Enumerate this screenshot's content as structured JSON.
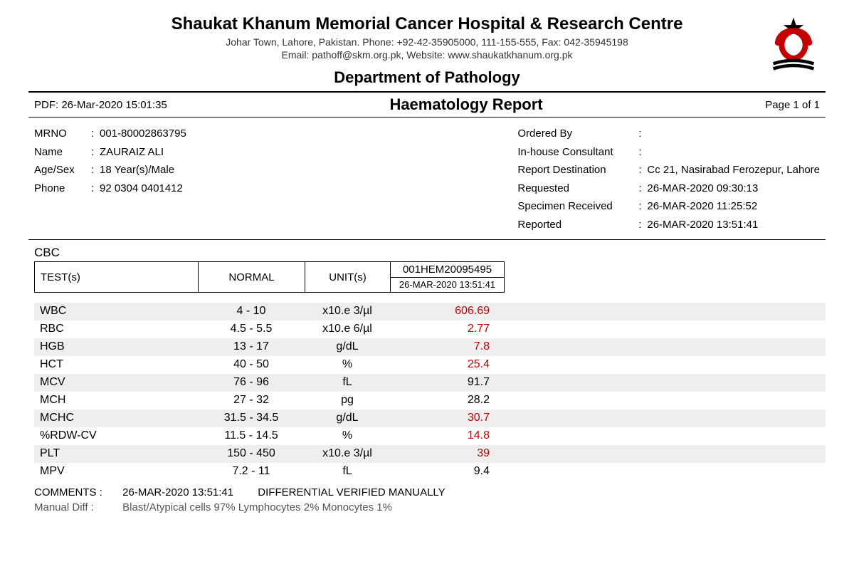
{
  "hospital": {
    "name": "Shaukat Khanum Memorial Cancer Hospital & Research Centre",
    "address_line": "Johar Town, Lahore, Pakistan. Phone: +92-42-35905000, 111-155-555, Fax: 042-35945198",
    "contact_line": "Email: pathoff@skm.org.pk, Website: www.shaukatkhanum.org.pk"
  },
  "dept_title": "Department of Pathology",
  "title_bar": {
    "pdf_ts": "PDF: 26-Mar-2020 15:01:35",
    "report_title": "Haematology Report",
    "page": "Page 1 of 1"
  },
  "patient": {
    "mrno_label": "MRNO",
    "mrno": "001-80002863795",
    "name_label": "Name",
    "name": "ZAURAIZ ALI",
    "agesex_label": "Age/Sex",
    "agesex": "18 Year(s)/Male",
    "phone_label": "Phone",
    "phone": "92 0304 0401412"
  },
  "order": {
    "ordered_by_label": "Ordered By",
    "ordered_by": "",
    "consultant_label": "In-house Consultant",
    "consultant": "",
    "dest_label": "Report Destination",
    "dest": "Cc 21, Nasirabad Ferozepur, Lahore",
    "requested_label": "Requested",
    "requested": "26-MAR-2020 09:30:13",
    "received_label": "Specimen Received",
    "received": "26-MAR-2020 11:25:52",
    "reported_label": "Reported",
    "reported": "26-MAR-2020 13:51:41"
  },
  "section": "CBC",
  "table_header": {
    "test": "TEST(s)",
    "normal": "NORMAL",
    "unit": "UNIT(s)",
    "spec_id": "001HEM20095495",
    "spec_ts": "26-MAR-2020 13:51:41"
  },
  "rows": [
    {
      "test": "WBC",
      "normal": "4 - 10",
      "unit": "x10.e 3/µl",
      "value": "606.69",
      "abnormal": true,
      "shade": true
    },
    {
      "test": "RBC",
      "normal": "4.5 - 5.5",
      "unit": "x10.e 6/µl",
      "value": "2.77",
      "abnormal": true,
      "shade": false
    },
    {
      "test": "HGB",
      "normal": "13 - 17",
      "unit": "g/dL",
      "value": "7.8",
      "abnormal": true,
      "shade": true
    },
    {
      "test": "HCT",
      "normal": "40 - 50",
      "unit": "%",
      "value": "25.4",
      "abnormal": true,
      "shade": false
    },
    {
      "test": "MCV",
      "normal": "76 - 96",
      "unit": "fL",
      "value": "91.7",
      "abnormal": false,
      "shade": true
    },
    {
      "test": "MCH",
      "normal": "27 - 32",
      "unit": "pg",
      "value": "28.2",
      "abnormal": false,
      "shade": false
    },
    {
      "test": "MCHC",
      "normal": "31.5 - 34.5",
      "unit": "g/dL",
      "value": "30.7",
      "abnormal": true,
      "shade": true
    },
    {
      "test": "%RDW-CV",
      "normal": "11.5 - 14.5",
      "unit": "%",
      "value": "14.8",
      "abnormal": true,
      "shade": false
    },
    {
      "test": "PLT",
      "normal": "150 - 450",
      "unit": "x10.e 3/µl",
      "value": "39",
      "abnormal": true,
      "shade": true
    },
    {
      "test": "MPV",
      "normal": "7.2 - 11",
      "unit": "fL",
      "value": "9.4",
      "abnormal": false,
      "shade": false
    }
  ],
  "comments": {
    "label": "COMMENTS :",
    "ts": "26-MAR-2020 13:51:41",
    "text": "DIFFERENTIAL VERIFIED MANUALLY"
  },
  "manual_diff": {
    "label": "Manual Diff :",
    "text": "Blast/Atypical cells 97%   Lymphocytes 2%   Monocytes 1%"
  },
  "colors": {
    "abnormal": "#c40000",
    "shade_bg": "#eeeeee",
    "text": "#000000"
  }
}
